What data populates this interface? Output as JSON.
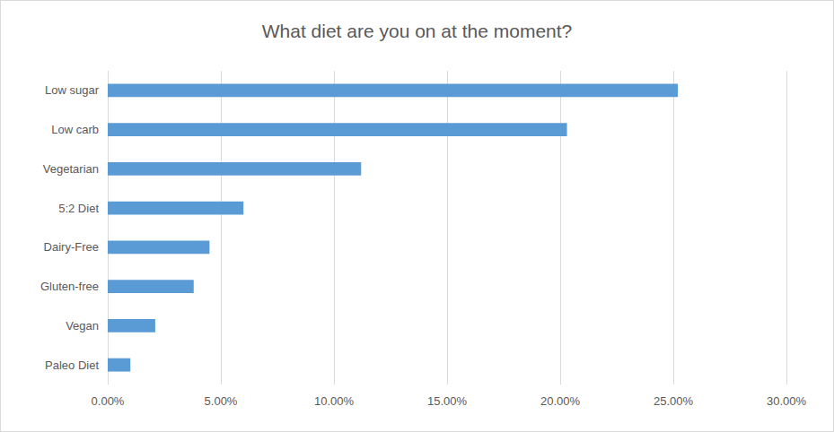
{
  "chart_data": {
    "type": "bar",
    "orientation": "horizontal",
    "title": "What diet are you on at the moment?",
    "categories": [
      "Low sugar",
      "Low carb",
      "Vegetarian",
      "5:2 Diet",
      "Dairy-Free",
      "Gluten-free",
      "Vegan",
      "Paleo Diet"
    ],
    "values": [
      25.2,
      20.3,
      11.2,
      6.0,
      4.5,
      3.8,
      2.1,
      1.0
    ],
    "color": "#5b9bd5",
    "xlim": [
      0,
      30
    ],
    "xticks": [
      {
        "value": 0,
        "label": "0.00%"
      },
      {
        "value": 5,
        "label": "5.00%"
      },
      {
        "value": 10,
        "label": "10.00%"
      },
      {
        "value": 15,
        "label": "15.00%"
      },
      {
        "value": 20,
        "label": "20.00%"
      },
      {
        "value": 25,
        "label": "25.00%"
      },
      {
        "value": 30,
        "label": "30.00%"
      }
    ],
    "grid": true
  }
}
